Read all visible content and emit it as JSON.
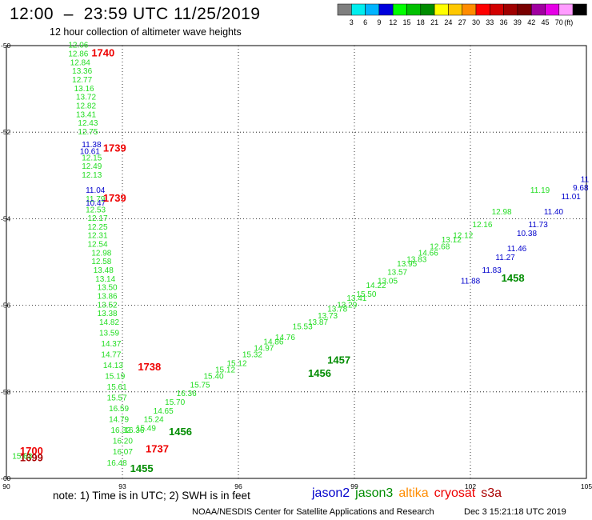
{
  "header": {
    "title": "12:00  –  23:59 UTC 11/25/2019",
    "subtitle": "12 hour collection of altimeter wave heights"
  },
  "colorbar": {
    "unit": "(ft)",
    "ticks": [
      "3",
      "6",
      "9",
      "12",
      "15",
      "18",
      "21",
      "24",
      "27",
      "30",
      "33",
      "36",
      "39",
      "42",
      "45",
      "70"
    ],
    "colors": [
      "#7f7f7f",
      "#00eeee",
      "#00b4ff",
      "#0000dc",
      "#00ff00",
      "#00c000",
      "#008c00",
      "#ffff00",
      "#ffc800",
      "#ff8c00",
      "#ff0000",
      "#d20000",
      "#a00000",
      "#780000",
      "#a000a0",
      "#e600e6",
      "#ff9cff",
      "#000000"
    ]
  },
  "footer": {
    "note": "note: 1) Time is in UTC; 2) SWH is in feet",
    "credit": "NOAA/NESDIS Center for Satellite Applications and Research",
    "generated": "Dec  3 15:21:18 UTC 2019"
  },
  "legend": {
    "items": [
      {
        "name": "jason2",
        "color": "#0000cc"
      },
      {
        "name": "jason3",
        "color": "#008c00"
      },
      {
        "name": "altika",
        "color": "#ff8c00"
      },
      {
        "name": "cryosat",
        "color": "#ee0000"
      },
      {
        "name": "s3a",
        "color": "#aa0000"
      }
    ]
  },
  "chart_data": {
    "type": "scatter",
    "xlim": [
      90,
      105
    ],
    "ylim": [
      -60,
      -50
    ],
    "xticks": [
      90,
      93,
      96,
      99,
      102,
      105
    ],
    "yticks": [
      -50,
      -52,
      -54,
      -56,
      -58,
      -60
    ],
    "grid": true,
    "series": [
      {
        "name": "jason3",
        "color": "#22dd22",
        "points": [
          {
            "x": 91.6,
            "y": -50.05,
            "v": "12.06"
          },
          {
            "x": 91.6,
            "y": -50.25,
            "v": "12.86"
          },
          {
            "x": 91.65,
            "y": -50.45,
            "v": "12.84"
          },
          {
            "x": 91.7,
            "y": -50.65,
            "v": "13.36"
          },
          {
            "x": 91.7,
            "y": -50.85,
            "v": "12.77"
          },
          {
            "x": 91.75,
            "y": -51.05,
            "v": "13.16"
          },
          {
            "x": 91.8,
            "y": -51.25,
            "v": "13.72"
          },
          {
            "x": 91.8,
            "y": -51.45,
            "v": "12.82"
          },
          {
            "x": 91.8,
            "y": -51.65,
            "v": "13.41"
          },
          {
            "x": 91.85,
            "y": -51.85,
            "v": "12.43"
          },
          {
            "x": 91.85,
            "y": -52.05,
            "v": "12.75"
          },
          {
            "x": 91.95,
            "y": -52.65,
            "v": "12.15"
          },
          {
            "x": 91.95,
            "y": -52.85,
            "v": "12.49"
          },
          {
            "x": 91.95,
            "y": -53.05,
            "v": "12.13"
          },
          {
            "x": 92.05,
            "y": -53.6,
            "v": "11.79"
          },
          {
            "x": 92.05,
            "y": -53.85,
            "v": "12.53"
          },
          {
            "x": 92.1,
            "y": -54.05,
            "v": "12.17"
          },
          {
            "x": 92.1,
            "y": -54.25,
            "v": "12.25"
          },
          {
            "x": 92.1,
            "y": -54.45,
            "v": "12.31"
          },
          {
            "x": 92.1,
            "y": -54.65,
            "v": "12.54"
          },
          {
            "x": 92.2,
            "y": -54.85,
            "v": "12.98"
          },
          {
            "x": 92.2,
            "y": -55.05,
            "v": "12.58"
          },
          {
            "x": 92.25,
            "y": -55.25,
            "v": "13.48"
          },
          {
            "x": 92.3,
            "y": -55.45,
            "v": "13.14"
          },
          {
            "x": 92.35,
            "y": -55.65,
            "v": "13.50"
          },
          {
            "x": 92.35,
            "y": -55.85,
            "v": "13.86"
          },
          {
            "x": 92.35,
            "y": -56.05,
            "v": "13.52"
          },
          {
            "x": 92.35,
            "y": -56.25,
            "v": "13.38"
          },
          {
            "x": 92.4,
            "y": -56.45,
            "v": "14.82"
          },
          {
            "x": 92.4,
            "y": -56.7,
            "v": "13.59"
          },
          {
            "x": 92.45,
            "y": -56.95,
            "v": "14.37"
          },
          {
            "x": 92.45,
            "y": -57.2,
            "v": "14.77"
          },
          {
            "x": 92.5,
            "y": -57.45,
            "v": "14.13"
          },
          {
            "x": 92.55,
            "y": -57.7,
            "v": "15.19"
          },
          {
            "x": 92.6,
            "y": -57.95,
            "v": "15.61"
          },
          {
            "x": 92.6,
            "y": -58.2,
            "v": "15.57"
          },
          {
            "x": 92.65,
            "y": -58.45,
            "v": "16.59"
          },
          {
            "x": 92.65,
            "y": -58.7,
            "v": "14.79"
          },
          {
            "x": 92.7,
            "y": -58.95,
            "v": "16.32"
          },
          {
            "x": 92.75,
            "y": -59.2,
            "v": "16.20"
          },
          {
            "x": 92.75,
            "y": -59.45,
            "v": "16.07"
          },
          {
            "x": 92.6,
            "y": -59.7,
            "v": "16.48"
          },
          {
            "x": 93.05,
            "y": -58.95,
            "v": "16.36"
          },
          {
            "x": 93.35,
            "y": -58.9,
            "v": "15.49"
          },
          {
            "x": 93.55,
            "y": -58.7,
            "v": "15.24"
          },
          {
            "x": 93.8,
            "y": -58.5,
            "v": "14.65"
          },
          {
            "x": 94.1,
            "y": -58.3,
            "v": "15.70"
          },
          {
            "x": 94.4,
            "y": -58.1,
            "v": "16.36"
          },
          {
            "x": 94.75,
            "y": -57.9,
            "v": "15.75"
          },
          {
            "x": 95.1,
            "y": -57.7,
            "v": "15.40"
          },
          {
            "x": 95.4,
            "y": -57.55,
            "v": "15.12"
          },
          {
            "x": 95.7,
            "y": -57.4,
            "v": "15.12"
          },
          {
            "x": 96.1,
            "y": -57.2,
            "v": "15.32"
          },
          {
            "x": 96.4,
            "y": -57.05,
            "v": "14.97"
          },
          {
            "x": 96.65,
            "y": -56.9,
            "v": "14.86"
          },
          {
            "x": 96.95,
            "y": -56.8,
            "v": "14.76"
          },
          {
            "x": 97.4,
            "y": -56.55,
            "v": "15.53"
          },
          {
            "x": 97.8,
            "y": -56.45,
            "v": "13.87"
          },
          {
            "x": 98.05,
            "y": -56.3,
            "v": "13.73"
          },
          {
            "x": 98.3,
            "y": -56.15,
            "v": "13.78"
          },
          {
            "x": 98.55,
            "y": -56.05,
            "v": "13.29"
          },
          {
            "x": 98.8,
            "y": -55.9,
            "v": "13.41"
          },
          {
            "x": 99.05,
            "y": -55.8,
            "v": "15.50"
          },
          {
            "x": 99.3,
            "y": -55.6,
            "v": "14.22"
          },
          {
            "x": 99.6,
            "y": -55.5,
            "v": "13.05"
          },
          {
            "x": 99.85,
            "y": -55.3,
            "v": "13.57"
          },
          {
            "x": 100.1,
            "y": -55.1,
            "v": "13.95"
          },
          {
            "x": 100.35,
            "y": -55.0,
            "v": "13.83"
          },
          {
            "x": 100.65,
            "y": -54.85,
            "v": "14.66"
          },
          {
            "x": 100.95,
            "y": -54.7,
            "v": "12.68"
          },
          {
            "x": 101.25,
            "y": -54.55,
            "v": "13.12"
          },
          {
            "x": 101.55,
            "y": -54.45,
            "v": "12.12"
          },
          {
            "x": 102.05,
            "y": -54.2,
            "v": "12.16"
          },
          {
            "x": 102.55,
            "y": -53.9,
            "v": "12.98"
          },
          {
            "x": 103.55,
            "y": -53.4,
            "v": "11.19"
          }
        ]
      },
      {
        "name": "jason3-highlight",
        "color": "#008c00",
        "bold": true,
        "points": [
          {
            "x": 93.2,
            "y": -59.85,
            "v": "1455"
          },
          {
            "x": 94.2,
            "y": -59.0,
            "v": "1456"
          },
          {
            "x": 97.8,
            "y": -57.65,
            "v": "1456"
          },
          {
            "x": 98.3,
            "y": -57.35,
            "v": "1457"
          },
          {
            "x": 102.8,
            "y": -55.45,
            "v": "1458"
          }
        ]
      },
      {
        "name": "jason2",
        "color": "#0000cc",
        "points": [
          {
            "x": 91.95,
            "y": -52.35,
            "v": "11.38"
          },
          {
            "x": 91.9,
            "y": -52.5,
            "v": "10.61"
          },
          {
            "x": 92.05,
            "y": -53.4,
            "v": "11.04"
          },
          {
            "x": 92.05,
            "y": -53.7,
            "v": "10.47"
          },
          {
            "x": 101.75,
            "y": -55.5,
            "v": "11.88"
          },
          {
            "x": 102.3,
            "y": -55.25,
            "v": "11.83"
          },
          {
            "x": 102.65,
            "y": -54.95,
            "v": "11.27"
          },
          {
            "x": 102.95,
            "y": -54.75,
            "v": "11.46"
          },
          {
            "x": 103.2,
            "y": -54.4,
            "v": "10.38"
          },
          {
            "x": 103.5,
            "y": -54.2,
            "v": "11.73"
          },
          {
            "x": 103.9,
            "y": -53.9,
            "v": "11.40"
          },
          {
            "x": 104.35,
            "y": -53.55,
            "v": "11.01"
          },
          {
            "x": 104.65,
            "y": -53.35,
            "v": "9.68"
          },
          {
            "x": 104.85,
            "y": -53.15,
            "v": "11"
          }
        ]
      },
      {
        "name": "cryosat",
        "color": "#ee0000",
        "bold": true,
        "points": [
          {
            "x": 92.2,
            "y": -50.25,
            "v": "1740"
          },
          {
            "x": 92.5,
            "y": -52.45,
            "v": "1739"
          },
          {
            "x": 92.5,
            "y": -53.6,
            "v": "1739"
          },
          {
            "x": 93.4,
            "y": -57.5,
            "v": "1738"
          },
          {
            "x": 93.6,
            "y": -59.4,
            "v": "1737"
          },
          {
            "x": 90.35,
            "y": -59.45,
            "v": "1700"
          }
        ]
      },
      {
        "name": "s3a",
        "color": "#aa0000",
        "bold": true,
        "points": [
          {
            "x": 90.35,
            "y": -59.6,
            "v": "1699"
          }
        ]
      },
      {
        "name": "jason3-left",
        "color": "#22dd22",
        "points": [
          {
            "x": 90.15,
            "y": -59.55,
            "v": "15.63"
          }
        ]
      }
    ]
  }
}
